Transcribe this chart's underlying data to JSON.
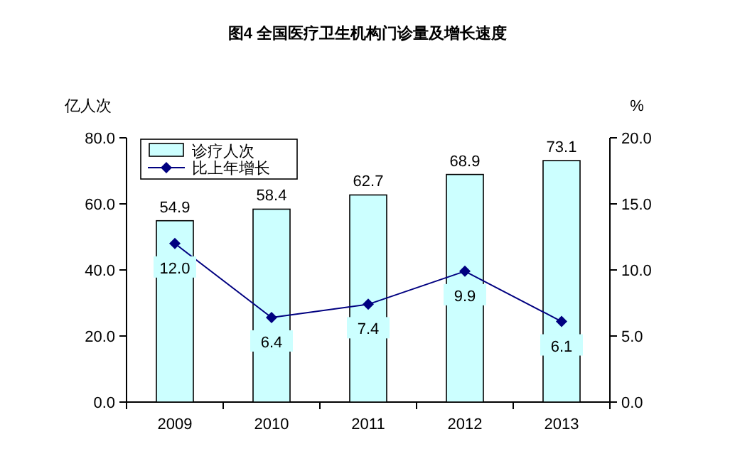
{
  "chart_data": {
    "type": "bar",
    "title": "图4  全国医疗卫生机构门诊量及增长速度",
    "ylabel": "亿人次",
    "y2label": "%",
    "categories": [
      "2009",
      "2010",
      "2011",
      "2012",
      "2013"
    ],
    "series": [
      {
        "name": "诊疗人次",
        "color": "#ccffff",
        "values": [
          54.9,
          58.4,
          62.7,
          68.9,
          73.1
        ],
        "value_labels": [
          "54.9",
          "58.4",
          "62.7",
          "68.9",
          "73.1"
        ]
      },
      {
        "name": "比上年增长",
        "type": "line",
        "axis": "y2",
        "color": "#000080",
        "marker": "diamond",
        "values": [
          12.0,
          6.4,
          7.4,
          9.9,
          6.1
        ],
        "value_labels": [
          "12.0",
          "6.4",
          "7.4",
          "9.9",
          "6.1"
        ]
      }
    ],
    "ylim": [
      0,
      80
    ],
    "yticks": [
      {
        "value": 0,
        "label": "0.0"
      },
      {
        "value": 20,
        "label": "20.0"
      },
      {
        "value": 40,
        "label": "40.0"
      },
      {
        "value": 60,
        "label": "60.0"
      },
      {
        "value": 80,
        "label": "80.0"
      }
    ],
    "y2lim": [
      0,
      20
    ],
    "y2ticks": [
      {
        "value": 0,
        "label": "0.0"
      },
      {
        "value": 5,
        "label": "5.0"
      },
      {
        "value": 10,
        "label": "10.0"
      },
      {
        "value": 15,
        "label": "15.0"
      },
      {
        "value": 20,
        "label": "20.0"
      }
    ],
    "legend": "top left",
    "grid": false
  }
}
